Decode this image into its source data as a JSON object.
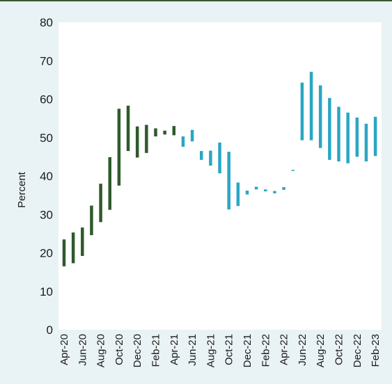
{
  "chart_data": {
    "type": "bar",
    "subtype": "floating-range",
    "ylabel": "Percent",
    "xlabel": "",
    "title": "",
    "ylim": [
      0,
      80
    ],
    "yticks": [
      0,
      10,
      20,
      30,
      40,
      50,
      60,
      70,
      80
    ],
    "grid": false,
    "colors": {
      "early": "#2e5a2b",
      "late": "#2aa6c4",
      "background": "#e9f2f4",
      "plot": "#ffffff"
    },
    "categories": [
      "Apr-20",
      "May-20",
      "Jun-20",
      "Jul-20",
      "Aug-20",
      "Sep-20",
      "Oct-20",
      "Nov-20",
      "Dec-20",
      "Jan-21",
      "Feb-21",
      "Mar-21",
      "Apr-21",
      "May-21",
      "Jun-21",
      "Jul-21",
      "Aug-21",
      "Sep-21",
      "Oct-21",
      "Nov-21",
      "Dec-21",
      "Jan-22",
      "Feb-22",
      "Mar-22",
      "Apr-22",
      "May-22",
      "Jun-22",
      "Jul-22",
      "Aug-22",
      "Sep-22",
      "Oct-22",
      "Nov-22",
      "Dec-22",
      "Jan-23",
      "Feb-23"
    ],
    "x_tick_labels": [
      "Apr-20",
      "Jun-20",
      "Aug-20",
      "Oct-20",
      "Dec-20",
      "Feb-21",
      "Apr-21",
      "Jun-21",
      "Aug-21",
      "Oct-21",
      "Dec-21",
      "Feb-22",
      "Apr-22",
      "Jun-22",
      "Aug-22",
      "Oct-22",
      "Dec-22",
      "Feb-23"
    ],
    "series": [
      {
        "color_key": "early",
        "low": [
          16.5,
          17.3,
          19.2,
          24.6,
          28.0,
          31.2,
          37.5,
          46.5,
          44.8,
          46.0,
          50.3,
          50.8,
          50.6
        ],
        "high": [
          23.5,
          25.3,
          26.6,
          32.3,
          38.0,
          44.9,
          57.5,
          58.3,
          52.9,
          53.3,
          52.4,
          51.8,
          53.0
        ]
      },
      {
        "color_key": "late",
        "low": [
          47.6,
          49.0,
          44.2,
          42.7,
          40.7,
          31.3,
          32.2,
          35.2,
          36.5,
          36.0,
          35.5,
          36.4,
          41.4,
          49.3,
          49.3,
          47.3,
          44.2,
          43.8,
          43.3,
          45.0,
          43.8,
          45.2
        ],
        "high": [
          50.3,
          52.0,
          46.5,
          46.6,
          48.7,
          46.3,
          38.3,
          36.2,
          37.2,
          36.5,
          36.1,
          37.1,
          41.6,
          64.3,
          67.1,
          63.6,
          60.3,
          58.0,
          56.5,
          55.2,
          53.6,
          55.4
        ]
      }
    ]
  }
}
